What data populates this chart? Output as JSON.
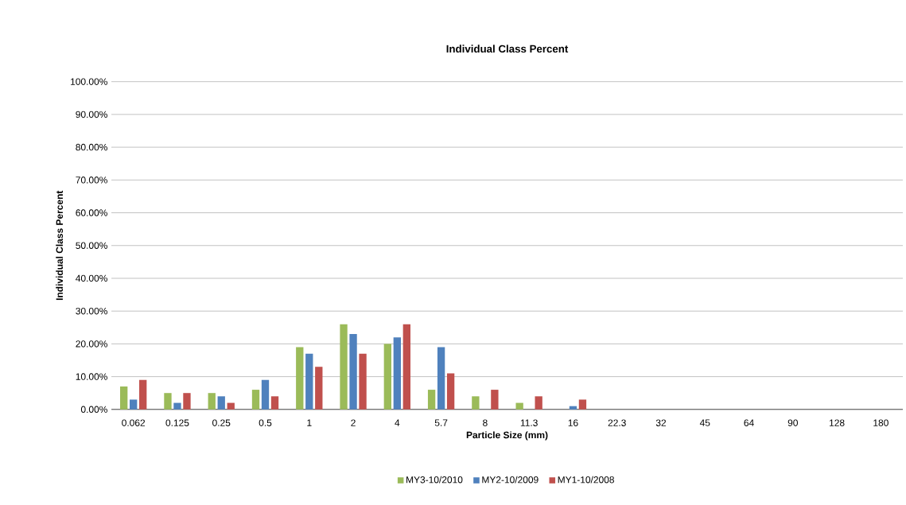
{
  "chart_data": {
    "type": "bar",
    "title": "Individual Class Percent",
    "xlabel": "Particle Size (mm)",
    "ylabel": "Individual Class Percent",
    "categories": [
      "0.062",
      "0.125",
      "0.25",
      "0.5",
      "1",
      "2",
      "4",
      "5.7",
      "8",
      "11.3",
      "16",
      "22.3",
      "32",
      "45",
      "64",
      "90",
      "128",
      "180"
    ],
    "series": [
      {
        "name": "MY3-10/2010",
        "color": "#9bbb59",
        "values": [
          7,
          5,
          5,
          6,
          19,
          26,
          20,
          6,
          4,
          2,
          0,
          0,
          0,
          0,
          0,
          0,
          0,
          0
        ]
      },
      {
        "name": "MY2-10/2009",
        "color": "#4f81bd",
        "values": [
          3,
          2,
          4,
          9,
          17,
          23,
          22,
          19,
          0,
          0,
          1,
          0,
          0,
          0,
          0,
          0,
          0,
          0
        ]
      },
      {
        "name": "MY1-10/2008",
        "color": "#c0504d",
        "values": [
          9,
          5,
          2,
          4,
          13,
          17,
          26,
          11,
          6,
          4,
          3,
          0,
          0,
          0,
          0,
          0,
          0,
          0
        ]
      }
    ],
    "ylim": [
      0,
      100
    ],
    "yticks": [
      {
        "value": 0,
        "label": "0.00%"
      },
      {
        "value": 10,
        "label": "10.00%"
      },
      {
        "value": 20,
        "label": "20.00%"
      },
      {
        "value": 30,
        "label": "30.00%"
      },
      {
        "value": 40,
        "label": "40.00%"
      },
      {
        "value": 50,
        "label": "50.00%"
      },
      {
        "value": 60,
        "label": "60.00%"
      },
      {
        "value": 70,
        "label": "70.00%"
      },
      {
        "value": 80,
        "label": "80.00%"
      },
      {
        "value": 90,
        "label": "90.00%"
      },
      {
        "value": 100,
        "label": "100.00%"
      }
    ],
    "grid": "y",
    "legend": "bottom"
  }
}
